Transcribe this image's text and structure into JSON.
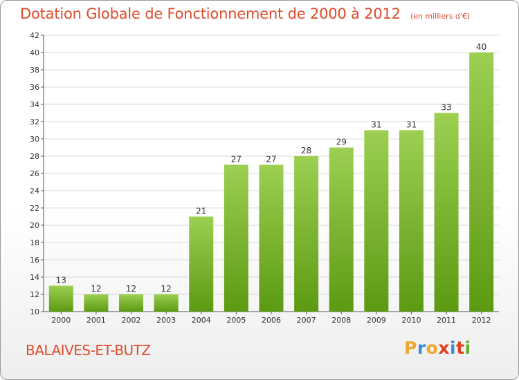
{
  "title": "Dotation Globale de Fonctionnement de 2000 à 2012",
  "unit_note": "(en milliers d'€)",
  "commune": "BALAIVES-ET-BUTZ",
  "logo": {
    "letters": [
      "P",
      "r",
      "o",
      "x",
      "i",
      "t",
      "i"
    ],
    "colors": [
      "#f0a830",
      "#3a8fd0",
      "#f0a830",
      "#e04020",
      "#3a8fd0",
      "#e04020",
      "#60b030"
    ]
  },
  "colors": {
    "title": "#e0492a",
    "bar_top": "#9ccf52",
    "bar_bottom": "#5c9a12"
  },
  "chart_data": {
    "type": "bar",
    "title": "Dotation Globale de Fonctionnement de 2000 à 2012",
    "categories": [
      "2000",
      "2001",
      "2002",
      "2003",
      "2004",
      "2005",
      "2006",
      "2007",
      "2008",
      "2009",
      "2010",
      "2011",
      "2012"
    ],
    "values": [
      13,
      12,
      12,
      12,
      21,
      27,
      27,
      28,
      29,
      31,
      31,
      33,
      40
    ],
    "ylim": [
      10,
      42
    ],
    "yticks": [
      10,
      12,
      14,
      16,
      18,
      20,
      22,
      24,
      26,
      28,
      30,
      32,
      34,
      36,
      38,
      40,
      42
    ],
    "grid": true,
    "xlabel": "",
    "ylabel": ""
  }
}
